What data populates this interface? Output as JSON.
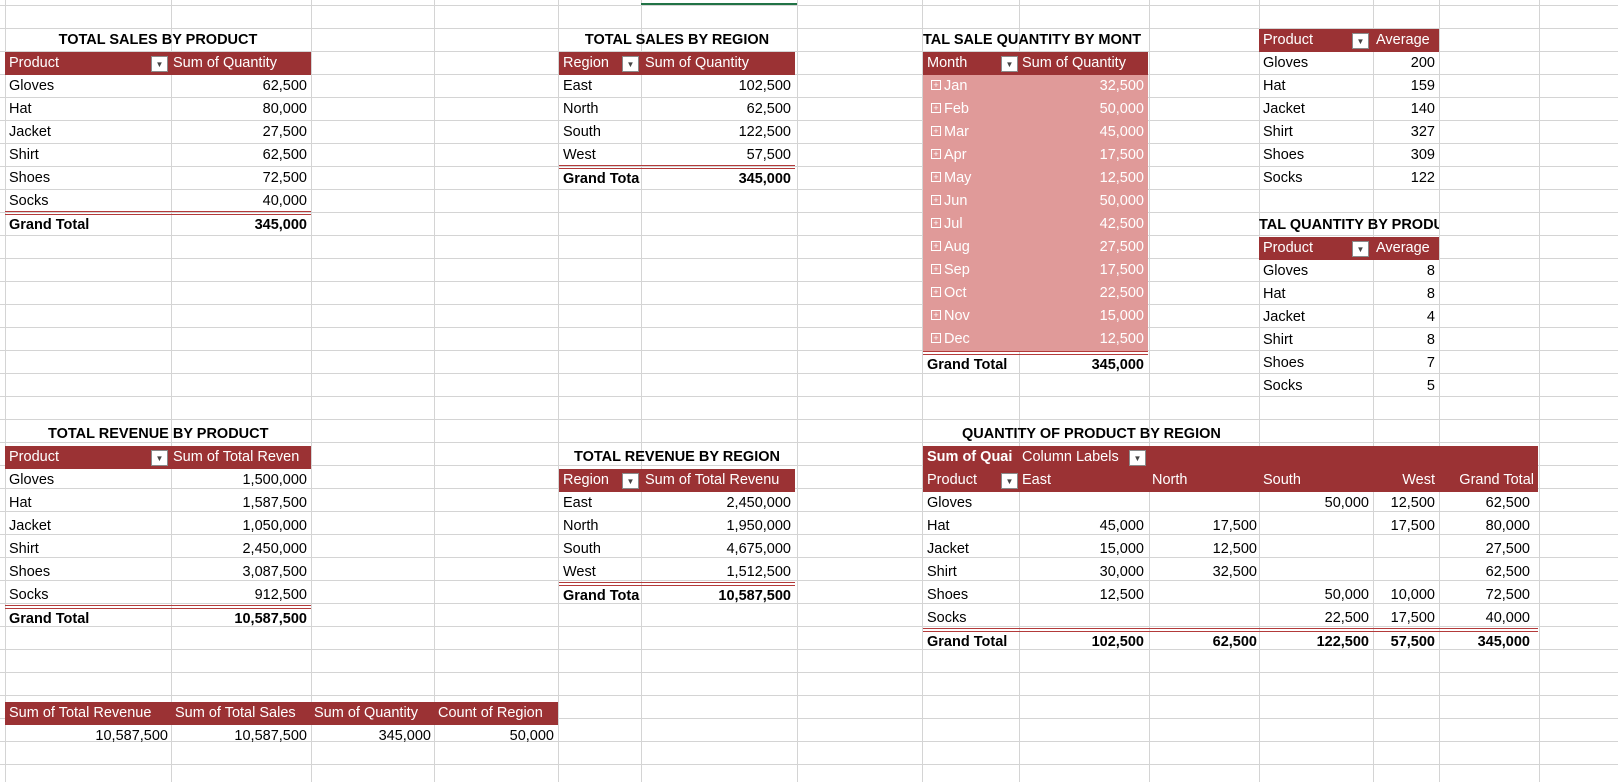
{
  "ui": {
    "header_color": "#9b3234",
    "month_fill_color": "#e09a99",
    "grid_color": "#d4d4d4"
  },
  "sales_by_product": {
    "title": "TOTAL SALES BY PRODUCT",
    "col1": "Product",
    "col2": "Sum of Quantity",
    "rows": [
      {
        "label": "Gloves",
        "value": "62,500"
      },
      {
        "label": "Hat",
        "value": "80,000"
      },
      {
        "label": "Jacket",
        "value": "27,500"
      },
      {
        "label": "Shirt",
        "value": "62,500"
      },
      {
        "label": "Shoes",
        "value": "72,500"
      },
      {
        "label": "Socks",
        "value": "40,000"
      }
    ],
    "total_label": "Grand Total",
    "total_value": "345,000"
  },
  "sales_by_region": {
    "title": "TOTAL SALES BY REGION",
    "col1": "Region",
    "col2": "Sum of Quantity",
    "rows": [
      {
        "label": "East",
        "value": "102,500"
      },
      {
        "label": "North",
        "value": "62,500"
      },
      {
        "label": "South",
        "value": "122,500"
      },
      {
        "label": "West",
        "value": "57,500"
      }
    ],
    "total_label": "Grand Tota",
    "total_value": "345,000"
  },
  "quantity_by_month": {
    "title": "TAL SALE QUANTITY  BY MONT",
    "col1": "Month",
    "col2": "Sum of Quantity",
    "expand_icon": "+",
    "rows": [
      {
        "label": "Jan",
        "value": "32,500"
      },
      {
        "label": "Feb",
        "value": "50,000"
      },
      {
        "label": "Mar",
        "value": "45,000"
      },
      {
        "label": "Apr",
        "value": "17,500"
      },
      {
        "label": "May",
        "value": "12,500"
      },
      {
        "label": "Jun",
        "value": "50,000"
      },
      {
        "label": "Jul",
        "value": "42,500"
      },
      {
        "label": "Aug",
        "value": "27,500"
      },
      {
        "label": "Sep",
        "value": "17,500"
      },
      {
        "label": "Oct",
        "value": "22,500"
      },
      {
        "label": "Nov",
        "value": "15,000"
      },
      {
        "label": "Dec",
        "value": "12,500"
      }
    ],
    "total_label": "Grand Total",
    "total_value": "345,000"
  },
  "avg_table_1": {
    "col1": "Product",
    "col2": "Average",
    "rows": [
      {
        "label": "Gloves",
        "value": "200"
      },
      {
        "label": "Hat",
        "value": "159"
      },
      {
        "label": "Jacket",
        "value": "140"
      },
      {
        "label": "Shirt",
        "value": "327"
      },
      {
        "label": "Shoes",
        "value": "309"
      },
      {
        "label": "Socks",
        "value": "122"
      }
    ]
  },
  "avg_quantity_by_product": {
    "title": "TAL QUANTITY BY PRODU",
    "col1": "Product",
    "col2": "Average",
    "rows": [
      {
        "label": "Gloves",
        "value": "8"
      },
      {
        "label": "Hat",
        "value": "8"
      },
      {
        "label": "Jacket",
        "value": "4"
      },
      {
        "label": "Shirt",
        "value": "8"
      },
      {
        "label": "Shoes",
        "value": "7"
      },
      {
        "label": "Socks",
        "value": "5"
      }
    ]
  },
  "revenue_by_product": {
    "title": "TOTAL REVENUE BY PRODUCT",
    "col1": "Product",
    "col2": "Sum of Total Reven",
    "rows": [
      {
        "label": "Gloves",
        "value": "1,500,000"
      },
      {
        "label": "Hat",
        "value": "1,587,500"
      },
      {
        "label": "Jacket",
        "value": "1,050,000"
      },
      {
        "label": "Shirt",
        "value": "2,450,000"
      },
      {
        "label": "Shoes",
        "value": "3,087,500"
      },
      {
        "label": "Socks",
        "value": "912,500"
      }
    ],
    "total_label": "Grand Total",
    "total_value": "10,587,500"
  },
  "revenue_by_region": {
    "title": "TOTAL REVENUE BY REGION",
    "col1": "Region",
    "col2": "Sum of Total Revenu",
    "rows": [
      {
        "label": "East",
        "value": "2,450,000"
      },
      {
        "label": "North",
        "value": "1,950,000"
      },
      {
        "label": "South",
        "value": "4,675,000"
      },
      {
        "label": "West",
        "value": "1,512,500"
      }
    ],
    "total_label": "Grand Tota",
    "total_value": "10,587,500"
  },
  "quantity_product_region": {
    "title": "QUANTITY OF PRODUCT BY REGION",
    "header_a": "Sum of Quai",
    "header_b": "Column Labels",
    "col_product": "Product",
    "cols": [
      "East",
      "North",
      "South",
      "West",
      "Grand Total"
    ],
    "rows": [
      {
        "label": "Gloves",
        "values": [
          "",
          "",
          "50,000",
          "12,500",
          "62,500"
        ]
      },
      {
        "label": "Hat",
        "values": [
          "45,000",
          "17,500",
          "",
          "17,500",
          "80,000"
        ]
      },
      {
        "label": "Jacket",
        "values": [
          "15,000",
          "12,500",
          "",
          "",
          "27,500"
        ]
      },
      {
        "label": "Shirt",
        "values": [
          "30,000",
          "32,500",
          "",
          "",
          "62,500"
        ]
      },
      {
        "label": "Shoes",
        "values": [
          "12,500",
          "",
          "50,000",
          "10,000",
          "72,500"
        ]
      },
      {
        "label": "Socks",
        "values": [
          "",
          "",
          "22,500",
          "17,500",
          "40,000"
        ]
      }
    ],
    "total_label": "Grand Total",
    "total_values": [
      "102,500",
      "62,500",
      "122,500",
      "57,500",
      "345,000"
    ]
  },
  "summary": {
    "headers": [
      "Sum of Total Revenue",
      "Sum of Total Sales",
      "Sum of Quantity",
      "Count of Region"
    ],
    "values": [
      "10,587,500",
      "10,587,500",
      "345,000",
      "50,000"
    ]
  }
}
